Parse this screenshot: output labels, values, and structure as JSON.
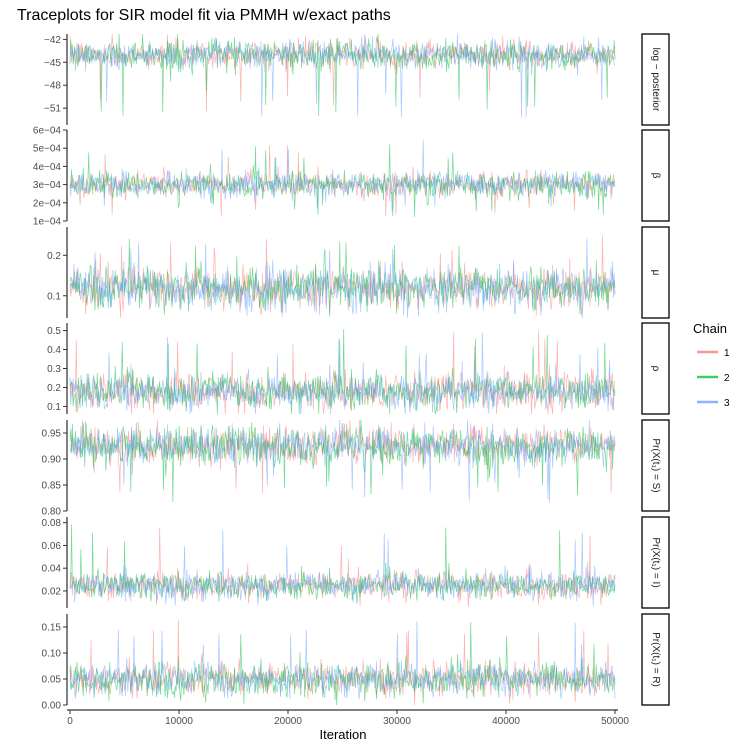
{
  "chart_data": {
    "type": "line",
    "title": "Traceplots for SIR model fit via PMMH w/exact paths",
    "xlabel": "Iteration",
    "ylabel": "",
    "xlim": [
      0,
      50000
    ],
    "x_ticks": [
      0,
      10000,
      20000,
      30000,
      40000,
      50000
    ],
    "x_tick_labels": [
      "0",
      "10000",
      "20000",
      "30000",
      "40000",
      "50000"
    ],
    "grid": false,
    "legend": {
      "title": "Chain",
      "position": "right",
      "entries": [
        {
          "label": "1",
          "color": "#F8766D"
        },
        {
          "label": "2",
          "color": "#00BA38"
        },
        {
          "label": "3",
          "color": "#619CFF"
        }
      ]
    },
    "series": [
      {
        "name": "1",
        "color": "#F8766D"
      },
      {
        "name": "2",
        "color": "#00BA38"
      },
      {
        "name": "3",
        "color": "#619CFF"
      }
    ],
    "panels": [
      {
        "strip": "log − posterior",
        "ylim": [
          -53.2,
          -41.3
        ],
        "y_ticks": [
          -42,
          -45,
          -48,
          -51
        ],
        "y_tick_labels": [
          "−42",
          "−45",
          "−48",
          "−51"
        ],
        "trace": {
          "center": -44.0,
          "spread": 0.9,
          "low_spike": -52.5,
          "high_spike": -42.0
        }
      },
      {
        "strip": "β",
        "ylim": [
          0.0001,
          0.0006
        ],
        "y_ticks": [
          0.0001,
          0.0002,
          0.0003,
          0.0004,
          0.0005,
          0.0006
        ],
        "y_tick_labels": [
          "1e−04",
          "2e−04",
          "3e−04",
          "4e−04",
          "5e−04",
          "6e−04"
        ],
        "trace": {
          "center": 0.0003,
          "spread": 3.5e-05,
          "low_spike": 0.00012,
          "high_spike": 0.00055
        }
      },
      {
        "strip": "μ",
        "ylim": [
          0.045,
          0.27
        ],
        "y_ticks": [
          0.1,
          0.2
        ],
        "y_tick_labels": [
          "0.1",
          "0.2"
        ],
        "trace": {
          "center": 0.12,
          "spread": 0.025,
          "low_spike": 0.05,
          "high_spike": 0.25
        }
      },
      {
        "strip": "ρ",
        "ylim": [
          0.06,
          0.54
        ],
        "y_ticks": [
          0.1,
          0.2,
          0.3,
          0.4,
          0.5
        ],
        "y_tick_labels": [
          "0.1",
          "0.2",
          "0.3",
          "0.4",
          "0.5"
        ],
        "trace": {
          "center": 0.18,
          "spread": 0.05,
          "low_spike": 0.08,
          "high_spike": 0.52
        }
      },
      {
        "strip": "Pr(X(t₁) = S)",
        "ylim": [
          0.8,
          0.975
        ],
        "y_ticks": [
          0.8,
          0.85,
          0.9,
          0.95
        ],
        "y_tick_labels": [
          "0.80",
          "0.85",
          "0.90",
          "0.95"
        ],
        "trace": {
          "center": 0.925,
          "spread": 0.018,
          "low_spike": 0.815,
          "high_spike": 0.97
        }
      },
      {
        "strip": "Pr(X(t₁) = I)",
        "ylim": [
          0.005,
          0.085
        ],
        "y_ticks": [
          0.02,
          0.04,
          0.06,
          0.08
        ],
        "y_tick_labels": [
          "0.02",
          "0.04",
          "0.06",
          "0.08"
        ],
        "trace": {
          "center": 0.025,
          "spread": 0.006,
          "low_spike": 0.012,
          "high_spike": 0.08
        }
      },
      {
        "strip": "Pr(X(t₁) = R)",
        "ylim": [
          0.0,
          0.175
        ],
        "y_ticks": [
          0.0,
          0.05,
          0.1,
          0.15
        ],
        "y_tick_labels": [
          "0.00",
          "0.05",
          "0.10",
          "0.15"
        ],
        "trace": {
          "center": 0.05,
          "spread": 0.016,
          "low_spike": 0.01,
          "high_spike": 0.165
        }
      }
    ]
  }
}
